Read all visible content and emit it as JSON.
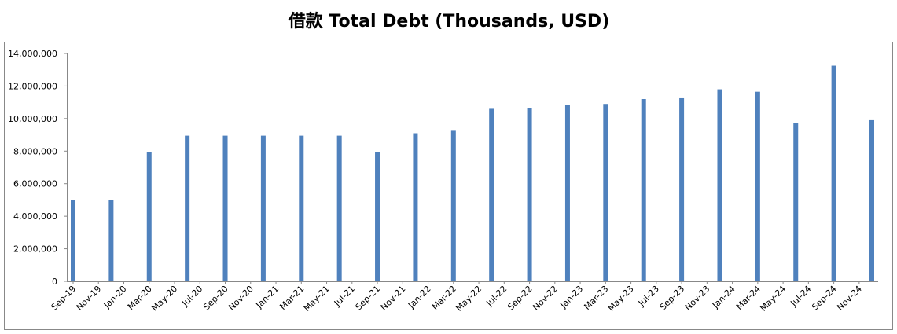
{
  "chart_data": {
    "type": "bar",
    "title": "借款 Total Debt (Thousands, USD)",
    "x": [
      "Sep-19",
      "Dec-19",
      "Mar-20",
      "Jun-20",
      "Sep-20",
      "Dec-20",
      "Mar-21",
      "Jun-21",
      "Sep-21",
      "Dec-21",
      "Mar-22",
      "Jun-22",
      "Sep-22",
      "Dec-22",
      "Mar-23",
      "Jun-23",
      "Sep-23",
      "Dec-23",
      "Mar-24",
      "Jun-24",
      "Sep-24",
      "Dec-24"
    ],
    "values": [
      5000000,
      5000000,
      7950000,
      8950000,
      8950000,
      8950000,
      8950000,
      8950000,
      7950000,
      9100000,
      9250000,
      10600000,
      10650000,
      10850000,
      10900000,
      11200000,
      11250000,
      11800000,
      11650000,
      9750000,
      13250000,
      9900000
    ],
    "color": "#4f81bd",
    "xticks": [
      "Sep-19",
      "Nov-19",
      "Jan-20",
      "Mar-20",
      "May-20",
      "Jul-20",
      "Sep-20",
      "Nov-20",
      "Jan-21",
      "Mar-21",
      "May-21",
      "Jul-21",
      "Sep-21",
      "Nov-21",
      "Jan-22",
      "Mar-22",
      "May-22",
      "Jul-22",
      "Sep-22",
      "Nov-22",
      "Jan-23",
      "Mar-23",
      "May-23",
      "Jul-23",
      "Sep-23",
      "Nov-23",
      "Jan-24",
      "Mar-24",
      "May-24",
      "Jul-24",
      "Sep-24",
      "Nov-24"
    ],
    "ylim": [
      0,
      14000000
    ],
    "yticks": [
      0,
      {
        "value": 2000000,
        "label": "2,000,000"
      },
      {
        "value": 4000000,
        "label": "4,000,000"
      },
      {
        "value": 6000000,
        "label": "6,000,000"
      },
      {
        "value": 8000000,
        "label": "8,000,000"
      },
      {
        "value": 10000000,
        "label": "10,000,000"
      },
      {
        "value": 12000000,
        "label": "12,000,000"
      },
      {
        "value": 14000000,
        "label": "14,000,000"
      }
    ],
    "grid": false
  }
}
